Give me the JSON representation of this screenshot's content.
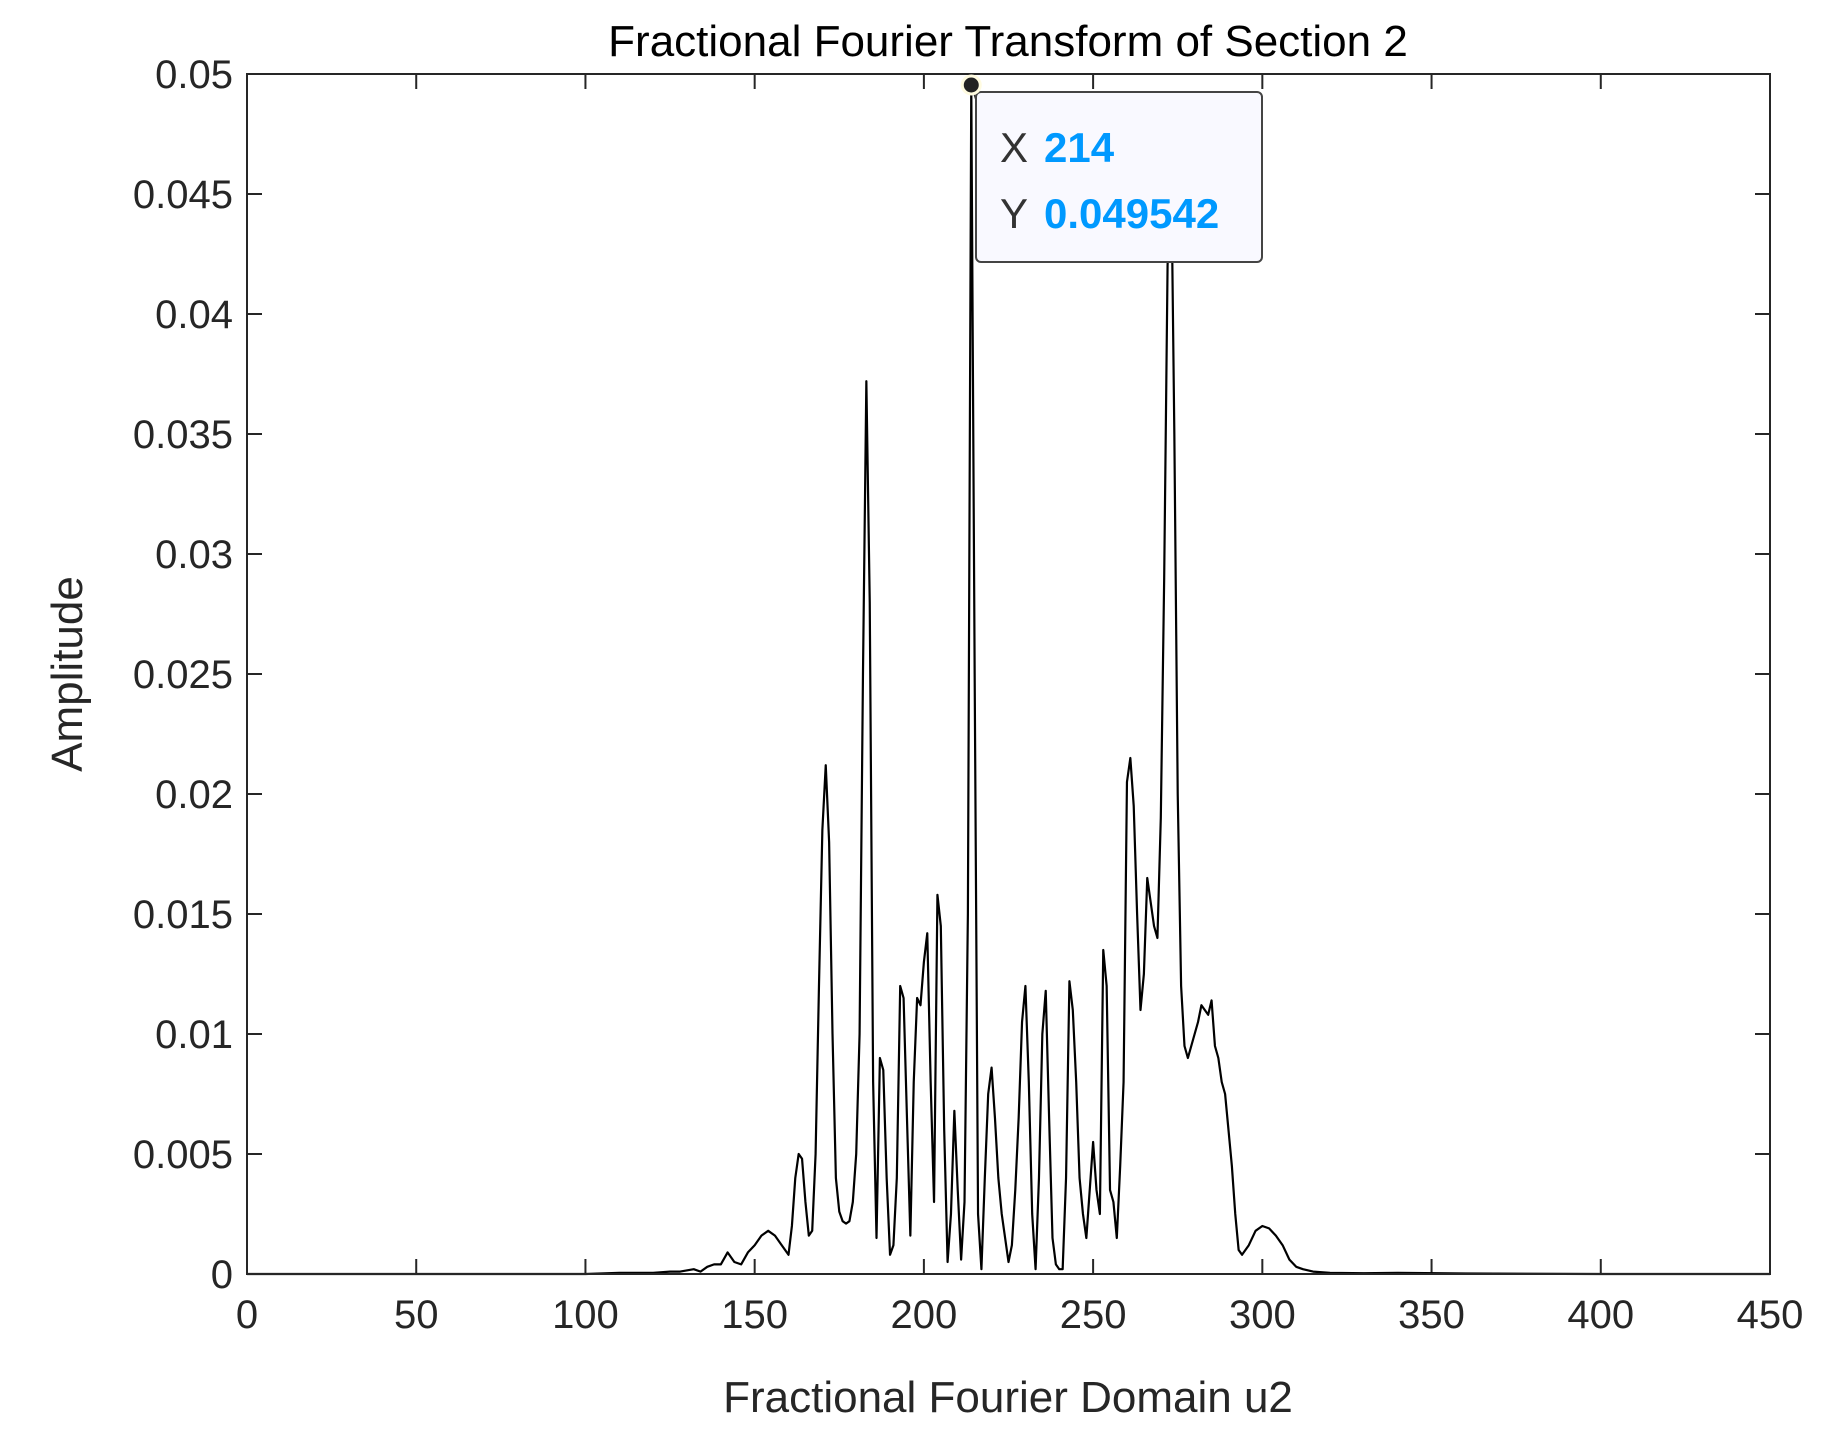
{
  "chart_data": {
    "type": "line",
    "title": "Fractional Fourier Transform of Section 2",
    "xlabel": "Fractional Fourier Domain u2",
    "ylabel": "Amplitude",
    "xlim": [
      0,
      450
    ],
    "ylim": [
      0,
      0.05
    ],
    "xticks": [
      "0",
      "50",
      "100",
      "150",
      "200",
      "250",
      "300",
      "350",
      "400",
      "450"
    ],
    "yticks": [
      "0",
      "0.005",
      "0.01",
      "0.015",
      "0.02",
      "0.025",
      "0.03",
      "0.035",
      "0.04",
      "0.045",
      "0.05"
    ],
    "grid": false,
    "line_color": "#000000",
    "series": [
      {
        "x": [
          0,
          100,
          110,
          120,
          125,
          128,
          132,
          134,
          136,
          138,
          140,
          142,
          144,
          146,
          148,
          150,
          152,
          154,
          156,
          158,
          160,
          161,
          162,
          163,
          164,
          165,
          166,
          167,
          168,
          169,
          170,
          171,
          172,
          173,
          174,
          175,
          176,
          177,
          178,
          179,
          180,
          181,
          182,
          183,
          184,
          185,
          186,
          187,
          188,
          189,
          190,
          191,
          192,
          193,
          194,
          195,
          196,
          197,
          198,
          199,
          200,
          201,
          202,
          203,
          204,
          205,
          206,
          207,
          208,
          209,
          210,
          211,
          212,
          213,
          214,
          215,
          216,
          217,
          218,
          219,
          220,
          221,
          222,
          223,
          224,
          225,
          226,
          227,
          228,
          229,
          230,
          231,
          232,
          233,
          234,
          235,
          236,
          237,
          238,
          239,
          240,
          241,
          242,
          243,
          244,
          245,
          246,
          247,
          248,
          249,
          250,
          251,
          252,
          253,
          254,
          255,
          256,
          257,
          258,
          259,
          260,
          261,
          262,
          263,
          264,
          265,
          266,
          267,
          268,
          269,
          270,
          271,
          272,
          273,
          274,
          275,
          276,
          277,
          278,
          279,
          280,
          281,
          282,
          283,
          284,
          285,
          286,
          287,
          288,
          289,
          290,
          291,
          292,
          293,
          294,
          296,
          298,
          300,
          302,
          304,
          306,
          308,
          310,
          312,
          315,
          320,
          330,
          340,
          360,
          400,
          450
        ],
        "y": [
          0,
          0,
          5e-05,
          5e-05,
          0.0001,
          0.0001,
          0.0002,
          0.0001,
          0.0003,
          0.0004,
          0.0004,
          0.0009,
          0.0005,
          0.0004,
          0.0009,
          0.0012,
          0.0016,
          0.0018,
          0.0016,
          0.0012,
          0.0008,
          0.002,
          0.004,
          0.005,
          0.0048,
          0.003,
          0.0016,
          0.0018,
          0.005,
          0.012,
          0.0185,
          0.0212,
          0.018,
          0.01,
          0.004,
          0.0026,
          0.0022,
          0.0021,
          0.0022,
          0.003,
          0.005,
          0.01,
          0.025,
          0.0372,
          0.028,
          0.008,
          0.0015,
          0.009,
          0.0085,
          0.004,
          0.0008,
          0.0012,
          0.004,
          0.012,
          0.0115,
          0.0065,
          0.0016,
          0.008,
          0.0115,
          0.0112,
          0.013,
          0.0142,
          0.008,
          0.003,
          0.0158,
          0.0145,
          0.006,
          0.0005,
          0.0025,
          0.0068,
          0.0035,
          0.0006,
          0.003,
          0.015,
          0.0495,
          0.025,
          0.0025,
          0.0002,
          0.004,
          0.0075,
          0.0086,
          0.0065,
          0.004,
          0.0025,
          0.0015,
          0.0005,
          0.0012,
          0.0035,
          0.0065,
          0.0105,
          0.012,
          0.008,
          0.0025,
          0.0002,
          0.004,
          0.01,
          0.0118,
          0.0065,
          0.0015,
          0.0004,
          0.0002,
          0.0002,
          0.004,
          0.0122,
          0.011,
          0.008,
          0.004,
          0.0025,
          0.0015,
          0.0035,
          0.0055,
          0.0035,
          0.0025,
          0.0135,
          0.012,
          0.0035,
          0.003,
          0.0015,
          0.0045,
          0.008,
          0.0205,
          0.0215,
          0.0195,
          0.015,
          0.011,
          0.0125,
          0.0165,
          0.0155,
          0.0145,
          0.014,
          0.019,
          0.029,
          0.042,
          0.047,
          0.035,
          0.02,
          0.012,
          0.0095,
          0.009,
          0.0095,
          0.01,
          0.0105,
          0.0112,
          0.011,
          0.0108,
          0.0114,
          0.0095,
          0.009,
          0.008,
          0.0075,
          0.006,
          0.0045,
          0.0025,
          0.001,
          0.0008,
          0.0012,
          0.0018,
          0.002,
          0.0019,
          0.0016,
          0.0012,
          0.0006,
          0.0003,
          0.0002,
          0.0001,
          5e-05,
          3e-05,
          5e-05,
          2e-05,
          0,
          0
        ]
      }
    ],
    "datatip": {
      "x": 214,
      "y": 0.049542,
      "x_label": "X",
      "y_label": "Y",
      "x_text": "214",
      "y_text": "0.049542",
      "value_color": "#0099ff"
    }
  }
}
